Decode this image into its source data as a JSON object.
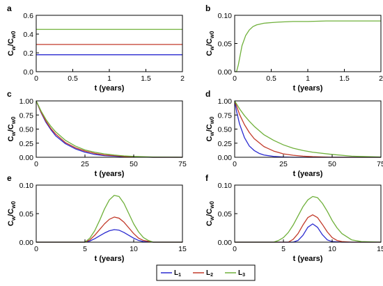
{
  "chart_data": [
    {
      "panel": "a",
      "type": "line",
      "xlabel": "t (years)",
      "ylabel_main": "C",
      "ylabel_sub1": "w",
      "ylabel_mid": "/C",
      "ylabel_sub2": "w0",
      "xlim": [
        0,
        2
      ],
      "ylim": [
        0,
        0.6
      ],
      "xticks": [
        0,
        0.5,
        1,
        1.5,
        2
      ],
      "xtick_labels": [
        "0",
        "0.5",
        "1",
        "1.5",
        "2"
      ],
      "yticks": [
        0,
        0.2,
        0.4,
        0.6
      ],
      "ytick_labels": [
        "0.0",
        "0.2",
        "0.4",
        "0.6"
      ],
      "series": [
        {
          "color": "#2a2ad0",
          "x": [
            0,
            2
          ],
          "y": [
            0.18,
            0.18
          ]
        },
        {
          "color": "#c23a2a",
          "x": [
            0,
            2
          ],
          "y": [
            0.29,
            0.29
          ]
        },
        {
          "color": "#6fb03a",
          "x": [
            0,
            2
          ],
          "y": [
            0.45,
            0.45
          ]
        }
      ]
    },
    {
      "panel": "b",
      "type": "line",
      "xlabel": "t (years)",
      "ylabel_main": "C",
      "ylabel_sub1": "w",
      "ylabel_mid": "/C",
      "ylabel_sub2": "w0",
      "xlim": [
        0,
        2
      ],
      "ylim": [
        0,
        0.1
      ],
      "xticks": [
        0,
        0.5,
        1,
        1.5,
        2
      ],
      "xtick_labels": [
        "0",
        "0.5",
        "1",
        "1.5",
        "2"
      ],
      "yticks": [
        0,
        0.05,
        0.1
      ],
      "ytick_labels": [
        "0.00",
        "0.05",
        "0.10"
      ],
      "series": [
        {
          "color": "#6fb03a",
          "x": [
            0,
            0.025,
            0.05,
            0.1,
            0.15,
            0.2,
            0.25,
            0.3,
            0.4,
            0.5,
            0.6,
            0.8,
            1.0,
            1.25,
            1.5,
            1.75,
            2.0
          ],
          "y": [
            0,
            0,
            0.012,
            0.046,
            0.064,
            0.074,
            0.08,
            0.083,
            0.086,
            0.087,
            0.088,
            0.089,
            0.089,
            0.09,
            0.09,
            0.09,
            0.09
          ]
        }
      ]
    },
    {
      "panel": "c",
      "type": "line",
      "xlabel": "t (years)",
      "ylabel_main": "C",
      "ylabel_sub1": "w",
      "ylabel_mid": "/C",
      "ylabel_sub2": "w0",
      "xlim": [
        0,
        75
      ],
      "ylim": [
        0,
        1
      ],
      "xticks": [
        0,
        25,
        50,
        75
      ],
      "xtick_labels": [
        "0",
        "25",
        "50",
        "75"
      ],
      "yticks": [
        0,
        0.25,
        0.5,
        0.75,
        1
      ],
      "ytick_labels": [
        "0.00",
        "0.25",
        "0.50",
        "0.75",
        "1.00"
      ],
      "series": [
        {
          "color": "#2a2ad0",
          "x": [
            0,
            2.5,
            5,
            7.5,
            10,
            15,
            20,
            25,
            30,
            35,
            40,
            45,
            50,
            60,
            75
          ],
          "y": [
            1,
            0.79,
            0.62,
            0.49,
            0.38,
            0.24,
            0.15,
            0.09,
            0.05,
            0.03,
            0.02,
            0.01,
            0.005,
            0,
            0
          ]
        },
        {
          "color": "#c23a2a",
          "x": [
            0,
            2.5,
            5,
            7.5,
            10,
            15,
            20,
            25,
            30,
            35,
            40,
            45,
            50,
            60,
            75
          ],
          "y": [
            1,
            0.8,
            0.64,
            0.51,
            0.41,
            0.26,
            0.17,
            0.11,
            0.07,
            0.04,
            0.03,
            0.015,
            0.008,
            0,
            0
          ]
        },
        {
          "color": "#6fb03a",
          "x": [
            0,
            2.5,
            5,
            7.5,
            10,
            15,
            20,
            25,
            30,
            35,
            40,
            45,
            50,
            60,
            75
          ],
          "y": [
            1,
            0.82,
            0.67,
            0.55,
            0.45,
            0.3,
            0.2,
            0.13,
            0.09,
            0.06,
            0.04,
            0.025,
            0.015,
            0.005,
            0
          ]
        }
      ]
    },
    {
      "panel": "d",
      "type": "line",
      "xlabel": "t (years)",
      "ylabel_main": "C",
      "ylabel_sub1": "w",
      "ylabel_mid": "/C",
      "ylabel_sub2": "w0",
      "xlim": [
        0,
        75
      ],
      "ylim": [
        0,
        1
      ],
      "xticks": [
        0,
        25,
        50,
        75
      ],
      "xtick_labels": [
        "0",
        "25",
        "50",
        "75"
      ],
      "yticks": [
        0,
        0.25,
        0.5,
        0.75,
        1
      ],
      "ytick_labels": [
        "0.00",
        "0.25",
        "0.50",
        "0.75",
        "1.00"
      ],
      "series": [
        {
          "color": "#2a2ad0",
          "x": [
            0,
            1,
            2.5,
            5,
            7.5,
            10,
            12.5,
            15,
            20,
            25,
            30,
            40,
            75
          ],
          "y": [
            1,
            0.81,
            0.59,
            0.35,
            0.2,
            0.12,
            0.07,
            0.04,
            0.015,
            0.005,
            0,
            0,
            0
          ]
        },
        {
          "color": "#c23a2a",
          "x": [
            0,
            2.5,
            5,
            7.5,
            10,
            15,
            20,
            25,
            30,
            35,
            40,
            50,
            75
          ],
          "y": [
            1,
            0.76,
            0.58,
            0.44,
            0.33,
            0.19,
            0.11,
            0.06,
            0.035,
            0.02,
            0.01,
            0,
            0
          ]
        },
        {
          "color": "#6fb03a",
          "x": [
            0,
            2.5,
            5,
            7.5,
            10,
            15,
            20,
            25,
            30,
            35,
            40,
            50,
            60,
            75
          ],
          "y": [
            1,
            0.86,
            0.74,
            0.64,
            0.55,
            0.4,
            0.3,
            0.22,
            0.16,
            0.12,
            0.09,
            0.05,
            0.02,
            0.005
          ]
        }
      ]
    },
    {
      "panel": "e",
      "type": "line",
      "xlabel": "t (years)",
      "ylabel_main": "C",
      "ylabel_sub1": "w",
      "ylabel_mid": "/C",
      "ylabel_sub2": "w0",
      "xlim": [
        0,
        15
      ],
      "ylim": [
        0,
        0.1
      ],
      "xticks": [
        0,
        5,
        10,
        15
      ],
      "xtick_labels": [
        "0",
        "5",
        "10",
        "15"
      ],
      "yticks": [
        0,
        0.05,
        0.1
      ],
      "ytick_labels": [
        "0.00",
        "0.05",
        "0.10"
      ],
      "series": [
        {
          "color": "#2a2ad0",
          "x": [
            0,
            5,
            5.5,
            6,
            6.5,
            7,
            7.5,
            8,
            8.5,
            9,
            9.5,
            10,
            10.5,
            11,
            12,
            15
          ],
          "y": [
            0,
            0,
            0.002,
            0.006,
            0.011,
            0.016,
            0.02,
            0.022,
            0.021,
            0.017,
            0.012,
            0.007,
            0.003,
            0.001,
            0,
            0
          ]
        },
        {
          "color": "#c23a2a",
          "x": [
            0,
            5,
            5.5,
            6,
            6.5,
            7,
            7.5,
            8,
            8.5,
            9,
            9.5,
            10,
            10.5,
            11,
            12,
            15
          ],
          "y": [
            0,
            0,
            0.004,
            0.012,
            0.022,
            0.032,
            0.04,
            0.044,
            0.042,
            0.035,
            0.025,
            0.015,
            0.007,
            0.003,
            0,
            0
          ]
        },
        {
          "color": "#6fb03a",
          "x": [
            0,
            5,
            5.5,
            6,
            6.5,
            7,
            7.5,
            8,
            8.5,
            9,
            9.5,
            10,
            10.5,
            11,
            11.5,
            12,
            15
          ],
          "y": [
            0,
            0,
            0.007,
            0.02,
            0.038,
            0.058,
            0.074,
            0.082,
            0.08,
            0.068,
            0.05,
            0.032,
            0.018,
            0.008,
            0.003,
            0,
            0
          ]
        }
      ]
    },
    {
      "panel": "f",
      "type": "line",
      "xlabel": "t (years)",
      "ylabel_main": "C",
      "ylabel_sub1": "w",
      "ylabel_mid": "/C",
      "ylabel_sub2": "w0",
      "xlim": [
        0,
        15
      ],
      "ylim": [
        0,
        0.1
      ],
      "xticks": [
        0,
        5,
        10,
        15
      ],
      "xtick_labels": [
        "0",
        "5",
        "10",
        "15"
      ],
      "yticks": [
        0,
        0.05,
        0.1
      ],
      "ytick_labels": [
        "0.00",
        "0.05",
        "0.10"
      ],
      "series": [
        {
          "color": "#2a2ad0",
          "x": [
            0,
            6,
            6.5,
            7,
            7.5,
            8,
            8.5,
            9,
            9.5,
            10,
            11,
            15
          ],
          "y": [
            0,
            0,
            0.003,
            0.012,
            0.026,
            0.032,
            0.026,
            0.013,
            0.004,
            0.001,
            0,
            0
          ]
        },
        {
          "color": "#c23a2a",
          "x": [
            0,
            5.5,
            6,
            6.5,
            7,
            7.5,
            8,
            8.5,
            9,
            9.5,
            10,
            10.5,
            11,
            12,
            15
          ],
          "y": [
            0,
            0,
            0.005,
            0.015,
            0.03,
            0.043,
            0.048,
            0.043,
            0.031,
            0.018,
            0.008,
            0.003,
            0.001,
            0,
            0
          ]
        },
        {
          "color": "#6fb03a",
          "x": [
            0,
            4,
            4.5,
            5,
            5.5,
            6,
            6.5,
            7,
            7.5,
            8,
            8.5,
            9,
            9.5,
            10,
            10.5,
            11,
            12,
            13,
            15
          ],
          "y": [
            0,
            0,
            0.003,
            0.008,
            0.017,
            0.03,
            0.046,
            0.062,
            0.074,
            0.08,
            0.078,
            0.068,
            0.054,
            0.038,
            0.025,
            0.015,
            0.004,
            0.001,
            0
          ]
        }
      ]
    }
  ],
  "legend": {
    "placement": "bottom-center",
    "entries": [
      {
        "label": "L",
        "sub": "1",
        "color": "#2a2ad0"
      },
      {
        "label": "L",
        "sub": "2",
        "color": "#c23a2a"
      },
      {
        "label": "L",
        "sub": "3",
        "color": "#6fb03a"
      }
    ]
  }
}
